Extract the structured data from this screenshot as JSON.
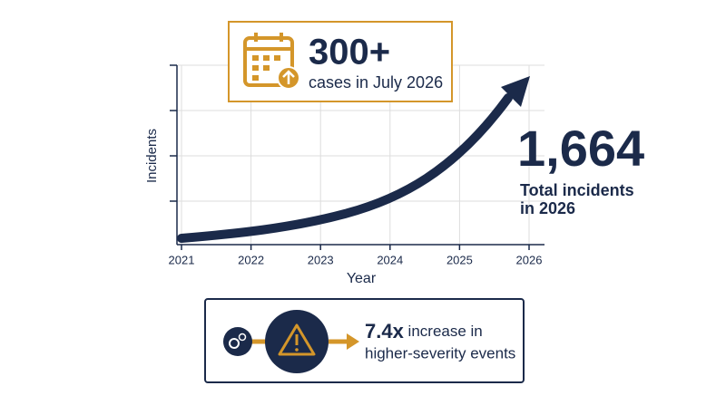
{
  "chart_data": {
    "type": "line",
    "x": [
      2021,
      2022,
      2023,
      2024,
      2025,
      2026
    ],
    "xlim": [
      2021,
      2026
    ],
    "xticks": [
      2021,
      2022,
      2023,
      2024,
      2025,
      2026
    ],
    "xlabel": "Year",
    "ylabel": "Incidents",
    "grid": true,
    "color": "#1b2a4a",
    "callout_top": {
      "headline": "300+",
      "text": "cases in July 2026"
    },
    "callout_right": {
      "headline": "1,664",
      "line1": "Total incidents",
      "line2": "in 2026"
    },
    "callout_bottom": {
      "headline": "7.4x",
      "text1": " increase in",
      "text2": "higher-severity events"
    }
  }
}
